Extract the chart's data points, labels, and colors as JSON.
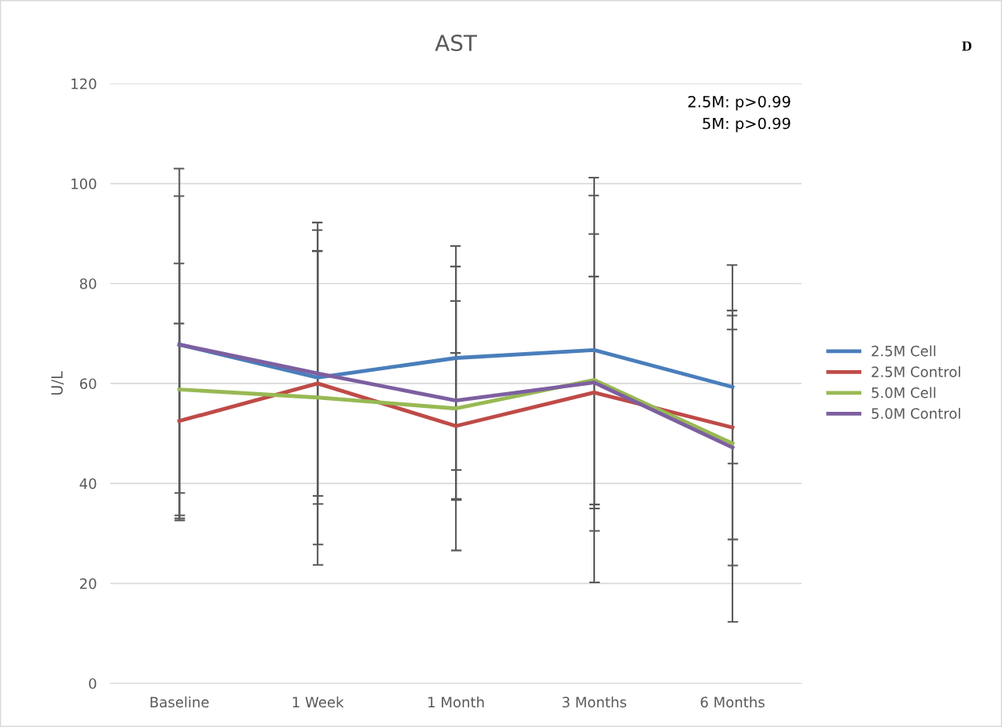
{
  "chart_data": {
    "type": "line",
    "title": "AST",
    "ylabel": "U/L",
    "categories": [
      "Baseline",
      "1 Week",
      "1 Month",
      "3 Months",
      "6 Months"
    ],
    "series": [
      {
        "name": "2.5M Cell",
        "color": "#4a7ebb",
        "values": [
          67.8,
          61.2,
          65.1,
          66.7,
          59.3
        ],
        "errors": [
          35.2,
          25.3,
          22.4,
          30.9,
          15.3
        ]
      },
      {
        "name": "2.5M Control",
        "color": "#be4b48",
        "values": [
          52.5,
          60,
          51.5,
          58.2,
          51.2
        ],
        "errors": [
          19.5,
          32.2,
          14.6,
          23.2,
          22.4
        ]
      },
      {
        "name": "5.0M Cell",
        "color": "#98b954",
        "values": [
          58.8,
          57.2,
          55,
          60.7,
          48
        ],
        "errors": [
          25.2,
          33.5,
          28.4,
          40.5,
          35.7
        ]
      },
      {
        "name": "5.0M Control",
        "color": "#7d5fa0",
        "values": [
          67.8,
          62,
          56.6,
          60.2,
          47.2
        ],
        "errors": [
          29.7,
          24.5,
          19.9,
          29.7,
          23.6
        ]
      }
    ],
    "ylim": [
      0,
      120
    ],
    "yticks": [
      0,
      20,
      40,
      60,
      80,
      100,
      120
    ],
    "grid": "y",
    "legend": "right",
    "marker": "none",
    "line_style": "solid",
    "annotations": [
      "2.5M: p>0.99\n5M: p>0.99",
      "D"
    ]
  }
}
